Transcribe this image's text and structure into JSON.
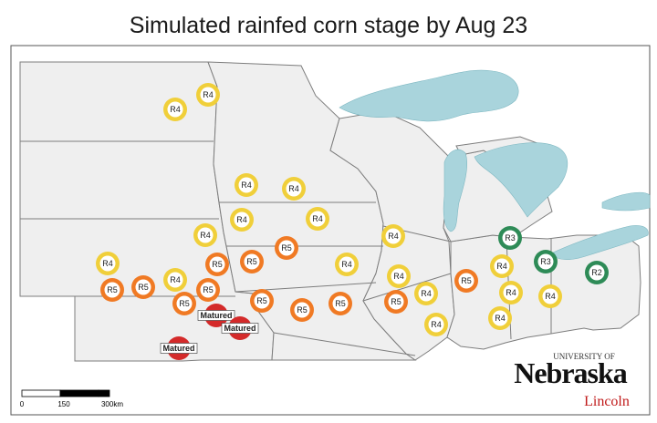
{
  "title": "Simulated rainfed corn stage by Aug 23",
  "colors": {
    "lake": "#a9d4dc",
    "land": "#efefef",
    "border": "#7d7d7d",
    "R2": "#2e8b57",
    "R3": "#2e8b57",
    "R4": "#f0cf3a",
    "R5": "#f07a24",
    "Matured": "#d42a2a"
  },
  "markers": [
    {
      "id": "m1",
      "stage": "R4"
    },
    {
      "id": "m2",
      "stage": "R4"
    },
    {
      "id": "m3",
      "stage": "R4"
    },
    {
      "id": "m4",
      "stage": "R4"
    },
    {
      "id": "m5",
      "stage": "R4"
    },
    {
      "id": "m6",
      "stage": "R4"
    },
    {
      "id": "m7",
      "stage": "R4"
    },
    {
      "id": "m8",
      "stage": "R4"
    },
    {
      "id": "m9",
      "stage": "R5"
    },
    {
      "id": "m10",
      "stage": "R5"
    },
    {
      "id": "m11",
      "stage": "R4"
    },
    {
      "id": "m12",
      "stage": "R5"
    },
    {
      "id": "m13",
      "stage": "R5"
    },
    {
      "id": "m14",
      "stage": "R5"
    },
    {
      "id": "m15",
      "stage": "R4"
    },
    {
      "id": "m16",
      "stage": "R5"
    },
    {
      "id": "m17",
      "stage": "R5"
    },
    {
      "id": "m18",
      "stage": "R5"
    },
    {
      "id": "m19",
      "stage": "R5"
    },
    {
      "id": "m20",
      "stage": "R5"
    },
    {
      "id": "m21",
      "stage": "R4"
    },
    {
      "id": "m22",
      "stage": "R4"
    },
    {
      "id": "m23",
      "stage": "R4"
    },
    {
      "id": "m24",
      "stage": "R5"
    },
    {
      "id": "m25",
      "stage": "R4"
    },
    {
      "id": "m26",
      "stage": "R5"
    },
    {
      "id": "m27",
      "stage": "R4"
    },
    {
      "id": "m28",
      "stage": "R4"
    },
    {
      "id": "m29",
      "stage": "R4"
    },
    {
      "id": "m30",
      "stage": "R4"
    },
    {
      "id": "m31",
      "stage": "R3"
    },
    {
      "id": "m32",
      "stage": "R3"
    },
    {
      "id": "m33",
      "stage": "R4"
    },
    {
      "id": "m34",
      "stage": "R2"
    },
    {
      "id": "m35",
      "stage": "Matured"
    },
    {
      "id": "m36",
      "stage": "Matured"
    },
    {
      "id": "m37",
      "stage": "Matured"
    }
  ],
  "scale_bar": {
    "labels": [
      "0",
      "150",
      "300km"
    ]
  },
  "logo": {
    "line1": "UNIVERSITY OF",
    "line2": "Nebraska",
    "line3": "Lincoln"
  }
}
